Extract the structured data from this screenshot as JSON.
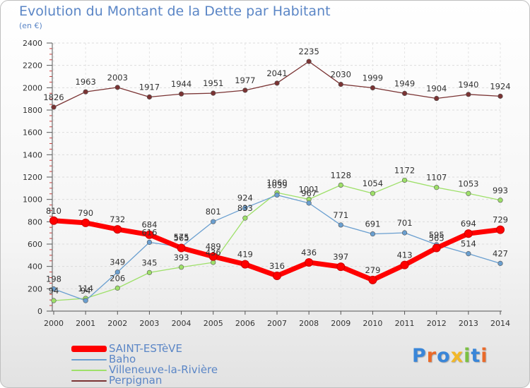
{
  "title": "Evolution du Montant de la Dette par Habitant",
  "subtitle": "(en €)",
  "logo": {
    "letters": [
      "P",
      "r",
      "o",
      "x",
      "i",
      "t",
      "i"
    ],
    "colors": [
      "#3a86d8",
      "#e96a2a",
      "#3a86d8",
      "#f2b829",
      "#7bc043",
      "#3a86d8",
      "#e96a2a"
    ]
  },
  "chart_data": {
    "type": "line",
    "x": [
      "2000",
      "2001",
      "2002",
      "2003",
      "2004",
      "2005",
      "2006",
      "2007",
      "2008",
      "2009",
      "2010",
      "2011",
      "2012",
      "2013",
      "2014"
    ],
    "ylim": [
      0,
      2400
    ],
    "yticks": [
      0,
      200,
      400,
      600,
      800,
      1000,
      1200,
      1400,
      1600,
      1800,
      2000,
      2200,
      2400
    ],
    "grid": true,
    "legend_position": "bottom-left",
    "series": [
      {
        "name": "SAINT-ESTèVE",
        "color": "#ff0000",
        "values": [
          810,
          790,
          732,
          684,
          565,
          489,
          419,
          316,
          436,
          397,
          279,
          413,
          565,
          694,
          729
        ]
      },
      {
        "name": "Baho",
        "color": "#6a9fd0",
        "values": [
          198,
          94,
          349,
          616,
          575,
          801,
          924,
          1039,
          967,
          771,
          691,
          701,
          595,
          514,
          427
        ]
      },
      {
        "name": "Villeneuve-la-Rivière",
        "color": "#9ee069",
        "values": [
          94,
          114,
          206,
          345,
          393,
          436,
          833,
          1060,
          1001,
          1128,
          1054,
          1172,
          1107,
          1053,
          993
        ]
      },
      {
        "name": "Perpignan",
        "color": "#7a3333",
        "values": [
          1826,
          1963,
          2003,
          1917,
          1944,
          1951,
          1977,
          2041,
          2235,
          2030,
          1999,
          1949,
          1904,
          1940,
          1924
        ]
      }
    ]
  }
}
